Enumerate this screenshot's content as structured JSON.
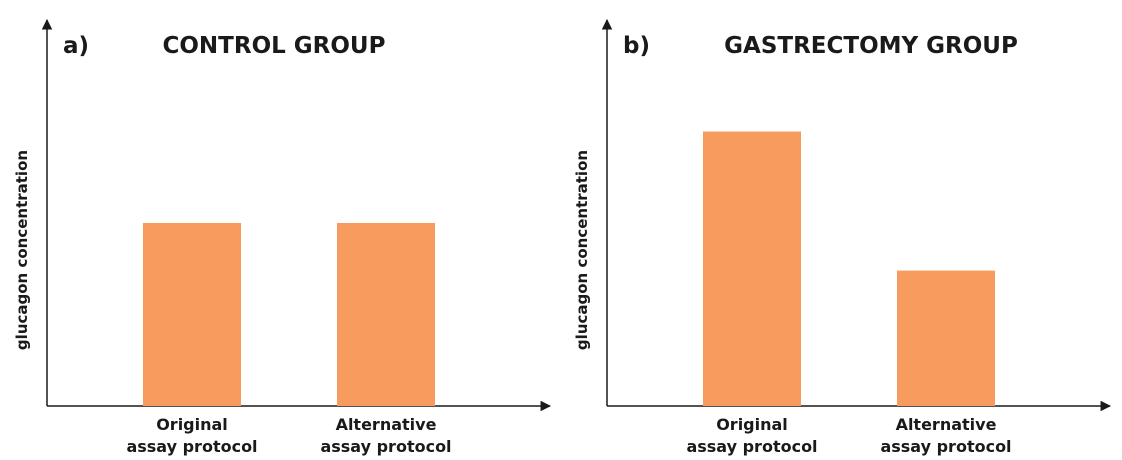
{
  "chart_data": [
    {
      "type": "bar",
      "panel_label": "a)",
      "title": "CONTROL GROUP",
      "ylabel": "glucagon concentration",
      "xlabel": "",
      "categories": [
        [
          "Original",
          "assay protocol"
        ],
        [
          "Alternative",
          "assay protocol"
        ]
      ],
      "values": [
        50,
        50
      ],
      "ylim": [
        0,
        100
      ],
      "grid": false,
      "bar_color": "#f79c5e"
    },
    {
      "type": "bar",
      "panel_label": "b)",
      "title": "GASTRECTOMY GROUP",
      "ylabel": "glucagon concentration",
      "xlabel": "",
      "categories": [
        [
          "Original",
          "assay protocol"
        ],
        [
          "Alternative",
          "assay protocol"
        ]
      ],
      "values": [
        75,
        37
      ],
      "ylim": [
        0,
        100
      ],
      "grid": false,
      "bar_color": "#f79c5e"
    }
  ],
  "colors": {
    "axis": "#1a1a1a",
    "bar": "#f79c5e"
  }
}
